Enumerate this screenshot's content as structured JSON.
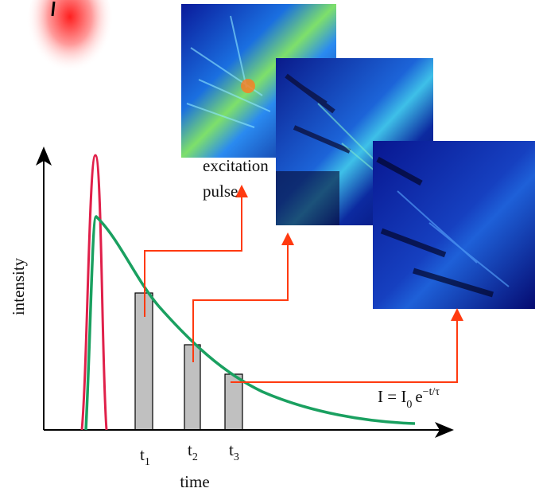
{
  "labels": {
    "excitation": "excitation",
    "pulse": "pulse",
    "y_axis": "intensity",
    "x_axis": "time"
  },
  "gates": [
    {
      "t": "t",
      "sub": "1"
    },
    {
      "t": "t",
      "sub": "2"
    },
    {
      "t": "t",
      "sub": "3"
    }
  ],
  "formula": {
    "lhs": "I = I",
    "sub": "0",
    "base": "e",
    "exp": "−t/τ"
  }
}
